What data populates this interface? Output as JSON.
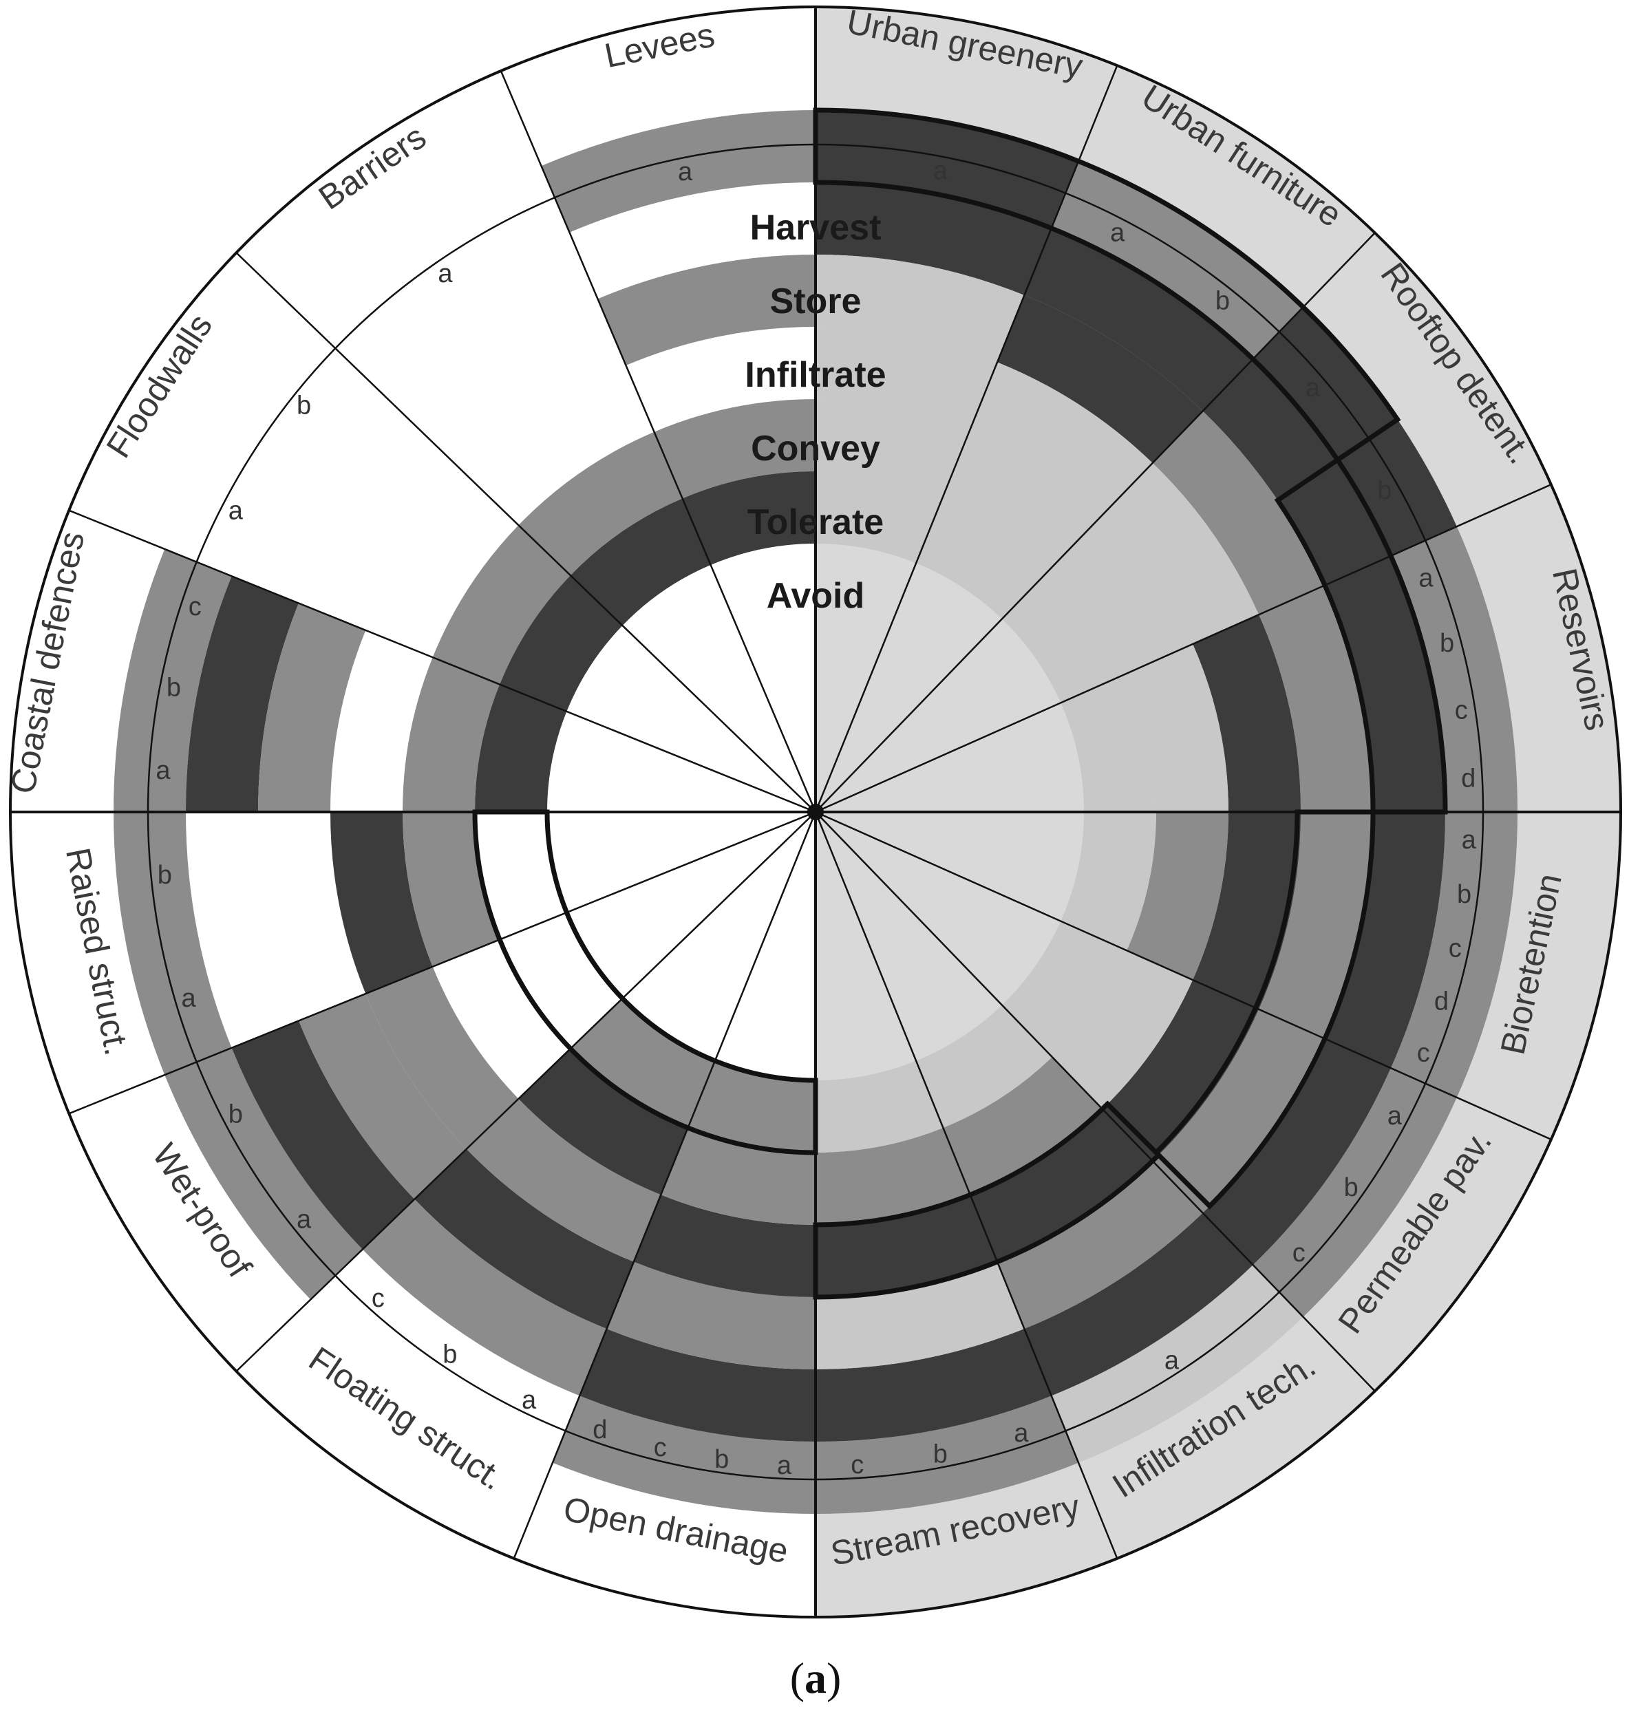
{
  "levels": [
    "Harvest",
    "Store",
    "Infiltrate",
    "Convey",
    "Tolerate",
    "Avoid"
  ],
  "segments": [
    {
      "name": "Urban greenery",
      "subs": [
        "a"
      ]
    },
    {
      "name": "Urban furniture",
      "subs": [
        "a",
        "b"
      ]
    },
    {
      "name": "Rooftop detent.",
      "subs": [
        "a",
        "b"
      ]
    },
    {
      "name": "Reservoirs",
      "subs": [
        "a",
        "b",
        "c",
        "d"
      ]
    },
    {
      "name": "Bioretention",
      "subs": [
        "a",
        "b",
        "c",
        "d",
        "c"
      ]
    },
    {
      "name": "Permeable pav.",
      "subs": [
        "a",
        "b",
        "c"
      ]
    },
    {
      "name": "Infiltration tech.",
      "subs": [
        "a"
      ]
    },
    {
      "name": "Stream recovery",
      "subs": [
        "a",
        "b",
        "c"
      ]
    },
    {
      "name": "Open drainage",
      "subs": [
        "a",
        "b",
        "c",
        "d"
      ]
    },
    {
      "name": "Floating struct.",
      "subs": [
        "a",
        "b",
        "c"
      ]
    },
    {
      "name": "Wet-proof",
      "subs": [
        "a",
        "b"
      ]
    },
    {
      "name": "Raised struct.",
      "subs": [
        "a",
        "b"
      ]
    },
    {
      "name": "Coastal defences",
      "subs": [
        "a",
        "b",
        "c"
      ]
    },
    {
      "name": "Floodwalls",
      "subs": [
        "a",
        "b"
      ]
    },
    {
      "name": "Barriers",
      "subs": [
        "a"
      ]
    },
    {
      "name": "Levees",
      "subs": [
        "a"
      ]
    }
  ],
  "caption": {
    "open": "(",
    "letter": "a",
    "close": ")"
  },
  "colors": {
    "background_green": "#d9d9d9",
    "light": "#c8c8c8",
    "medium": "#8c8c8c",
    "dark": "#3c3c3c",
    "line": "#111111"
  }
}
